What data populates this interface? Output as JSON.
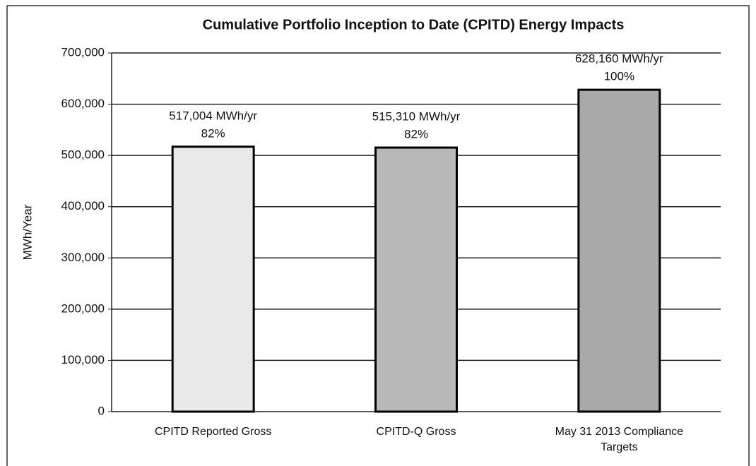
{
  "chart_data": {
    "type": "bar",
    "title": "Cumulative Portfolio Inception to Date (CPITD) Energy Impacts",
    "ylabel": "MWh/Year",
    "categories": [
      "CPITD Reported Gross",
      "CPITD-Q Gross",
      "May 31 2013 Compliance Targets"
    ],
    "values": [
      517004,
      515310,
      628160
    ],
    "value_labels": [
      "517,004 MWh/yr",
      "515,310 MWh/yr",
      "628,160 MWh/yr"
    ],
    "share_labels": [
      "82%",
      "82%",
      "100%"
    ],
    "colors": [
      "#e9e9e9",
      "#b9b9b9",
      "#a9a9a9"
    ],
    "ylim": [
      0,
      700000
    ],
    "yticks": [
      0,
      {
        "value": 100000,
        "label": "100,000"
      },
      {
        "value": 200000,
        "label": "200,000"
      },
      {
        "value": 300000,
        "label": "300,000"
      },
      {
        "value": 400000,
        "label": "400,000"
      },
      {
        "value": 500000,
        "label": "500,000"
      },
      {
        "value": 600000,
        "label": "600,000"
      },
      {
        "value": 700000,
        "label": "700,000"
      }
    ],
    "grid": true
  }
}
